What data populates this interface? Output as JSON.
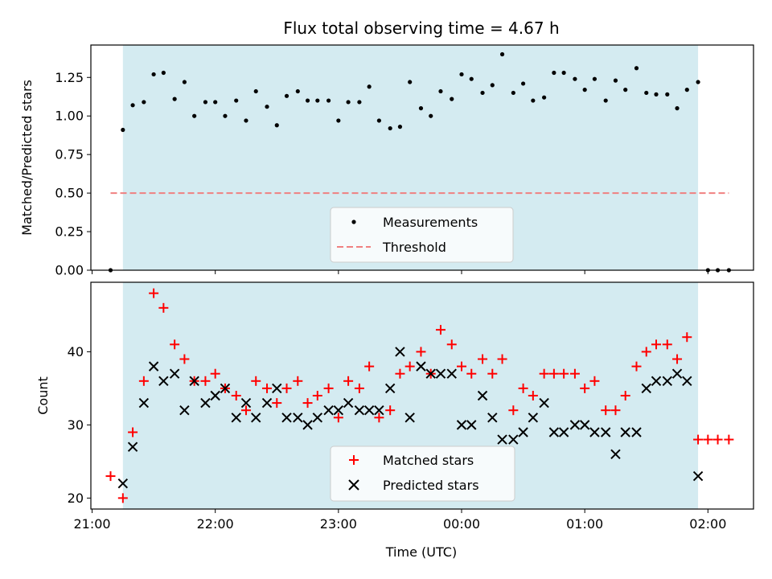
{
  "title": "Flux total observing time = 4.67 h",
  "colors": {
    "shade": "#d4ebf1",
    "measurement": "#000000",
    "threshold": "#f08080",
    "matched": "#ff0000",
    "predicted": "#000000"
  },
  "chart_data": [
    {
      "type": "scatter",
      "ylabel": "Matched/Predicted stars",
      "xlabel": "",
      "x_range_hours": [
        20.99,
        26.37
      ],
      "ylim": [
        0,
        1.46
      ],
      "yticks": [
        0.0,
        0.25,
        0.5,
        0.75,
        1.0,
        1.25
      ],
      "ytick_labels": [
        "0.00",
        "0.25",
        "0.50",
        "0.75",
        "1.00",
        "1.25"
      ],
      "shaded_span_hours": [
        21.25,
        25.92
      ],
      "legend": {
        "placement": "lower-center",
        "entries": [
          "Measurements",
          "Threshold"
        ]
      },
      "threshold": {
        "name": "Threshold",
        "value": 0.5,
        "x_from": 21.15,
        "x_to": 26.17
      },
      "series": [
        {
          "name": "Measurements",
          "x": [
            21.15,
            21.25,
            21.33,
            21.42,
            21.5,
            21.58,
            21.67,
            21.75,
            21.83,
            21.92,
            22.0,
            22.08,
            22.17,
            22.25,
            22.33,
            22.42,
            22.5,
            22.58,
            22.67,
            22.75,
            22.83,
            22.92,
            23.0,
            23.08,
            23.17,
            23.25,
            23.33,
            23.42,
            23.5,
            23.58,
            23.67,
            23.75,
            23.83,
            23.92,
            24.0,
            24.08,
            24.17,
            24.25,
            24.33,
            24.42,
            24.5,
            24.58,
            24.67,
            24.75,
            24.83,
            24.92,
            25.0,
            25.08,
            25.17,
            25.25,
            25.33,
            25.42,
            25.5,
            25.58,
            25.67,
            25.75,
            25.83,
            25.92,
            26.0,
            26.08,
            26.17
          ],
          "y": [
            0.0,
            0.91,
            1.07,
            1.09,
            1.27,
            1.28,
            1.11,
            1.22,
            1.0,
            1.09,
            1.09,
            1.0,
            1.1,
            0.97,
            1.16,
            1.06,
            0.94,
            1.13,
            1.16,
            1.1,
            1.1,
            1.1,
            0.97,
            1.09,
            1.09,
            1.19,
            0.97,
            0.92,
            0.93,
            1.22,
            1.05,
            1.0,
            1.16,
            1.11,
            1.27,
            1.24,
            1.15,
            1.2,
            1.4,
            1.15,
            1.21,
            1.1,
            1.12,
            1.28,
            1.28,
            1.24,
            1.17,
            1.24,
            1.1,
            1.23,
            1.17,
            1.31,
            1.15,
            1.14,
            1.14,
            1.05,
            1.17,
            1.22,
            0.0,
            0.0,
            0.0
          ]
        }
      ]
    },
    {
      "type": "scatter",
      "ylabel": "Count",
      "xlabel": "Time (UTC)",
      "x_range_hours": [
        20.99,
        26.37
      ],
      "ylim": [
        18.5,
        49.5
      ],
      "yticks": [
        20,
        30,
        40
      ],
      "ytick_labels": [
        "20",
        "30",
        "40"
      ],
      "xticks_hours": [
        21,
        22,
        23,
        24,
        25,
        26
      ],
      "xtick_labels": [
        "21:00",
        "22:00",
        "23:00",
        "00:00",
        "01:00",
        "02:00"
      ],
      "shaded_span_hours": [
        21.25,
        25.92
      ],
      "legend": {
        "placement": "lower-center",
        "entries": [
          "Matched stars",
          "Predicted stars"
        ]
      },
      "series": [
        {
          "name": "Matched stars",
          "marker": "plus",
          "x": [
            21.15,
            21.25,
            21.33,
            21.42,
            21.5,
            21.58,
            21.67,
            21.75,
            21.83,
            21.92,
            22.0,
            22.08,
            22.17,
            22.25,
            22.33,
            22.42,
            22.5,
            22.58,
            22.67,
            22.75,
            22.83,
            22.92,
            23.0,
            23.08,
            23.17,
            23.25,
            23.33,
            23.42,
            23.5,
            23.58,
            23.67,
            23.75,
            23.83,
            23.92,
            24.0,
            24.08,
            24.17,
            24.25,
            24.33,
            24.42,
            24.5,
            24.58,
            24.67,
            24.75,
            24.83,
            24.92,
            25.0,
            25.08,
            25.17,
            25.25,
            25.33,
            25.42,
            25.5,
            25.58,
            25.67,
            25.75,
            25.83,
            25.92,
            26.0,
            26.08,
            26.17
          ],
          "y": [
            23,
            20,
            29,
            36,
            48,
            46,
            41,
            39,
            36,
            36,
            37,
            35,
            34,
            32,
            36,
            35,
            33,
            35,
            36,
            33,
            34,
            35,
            31,
            36,
            35,
            38,
            31,
            32,
            37,
            38,
            40,
            37,
            43,
            41,
            38,
            37,
            39,
            37,
            39,
            32,
            35,
            34,
            37,
            37,
            37,
            37,
            35,
            36,
            32,
            32,
            34,
            38,
            40,
            41,
            41,
            39,
            42,
            28,
            28,
            28,
            28
          ]
        },
        {
          "name": "Predicted stars",
          "marker": "x",
          "x": [
            21.25,
            21.33,
            21.42,
            21.5,
            21.58,
            21.67,
            21.75,
            21.83,
            21.92,
            22.0,
            22.08,
            22.17,
            22.25,
            22.33,
            22.42,
            22.5,
            22.58,
            22.67,
            22.75,
            22.83,
            22.92,
            23.0,
            23.08,
            23.17,
            23.25,
            23.33,
            23.42,
            23.5,
            23.58,
            23.67,
            23.75,
            23.83,
            23.92,
            24.0,
            24.08,
            24.17,
            24.25,
            24.33,
            24.42,
            24.5,
            24.58,
            24.67,
            24.75,
            24.83,
            24.92,
            25.0,
            25.08,
            25.17,
            25.25,
            25.33,
            25.42,
            25.5,
            25.58,
            25.67,
            25.75,
            25.83,
            25.92
          ],
          "y": [
            22,
            27,
            33,
            38,
            36,
            37,
            32,
            36,
            33,
            34,
            35,
            31,
            33,
            31,
            33,
            35,
            31,
            31,
            30,
            31,
            32,
            32,
            33,
            32,
            32,
            32,
            35,
            40,
            31,
            38,
            37,
            37,
            37,
            30,
            30,
            34,
            31,
            28,
            28,
            29,
            31,
            33,
            29,
            29,
            30,
            30,
            29,
            29,
            26,
            29,
            29,
            35,
            36,
            36,
            37,
            36,
            23
          ]
        }
      ]
    }
  ]
}
